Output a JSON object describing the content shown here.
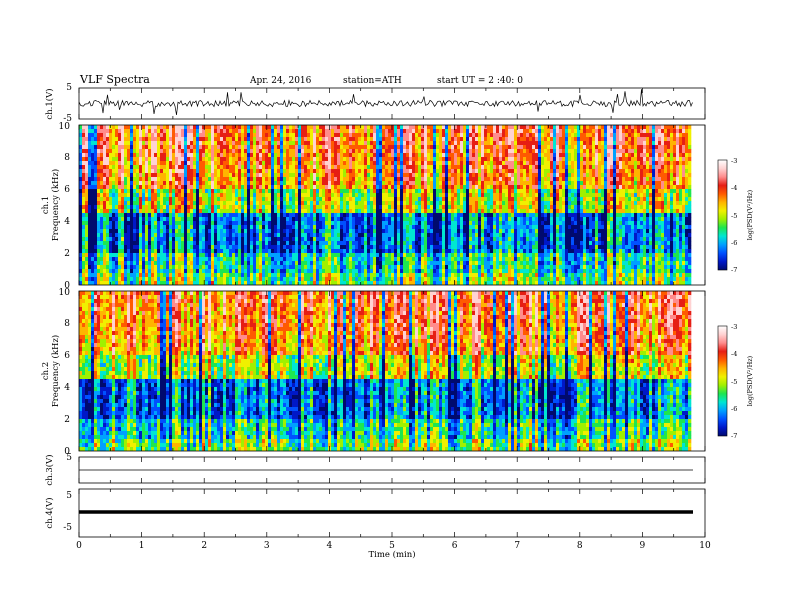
{
  "header": {
    "title": "VLF Spectra",
    "date": "Apr. 24, 2016",
    "station": "station=ATH",
    "start": "start UT = 2 :40: 0"
  },
  "chart_data": [
    {
      "type": "line",
      "panel": "ch1-waveform",
      "ylabel": "ch.1(V)",
      "ylim": [
        -5,
        5
      ],
      "yticks": [
        "5",
        "-5"
      ],
      "xlim": [
        0,
        10
      ],
      "x_range_min": [
        0,
        9.8
      ],
      "approx_center_value": 0,
      "approx_amplitude": 2
    },
    {
      "type": "heatmap",
      "panel": "ch1-spectrogram",
      "ylabel_line1": "ch.1",
      "ylabel_line2": "Frequency (kHz)",
      "ylim": [
        0,
        10
      ],
      "yticks": [
        "0",
        "2",
        "4",
        "6",
        "8",
        "10"
      ],
      "xlim": [
        0,
        10
      ],
      "colorbar": {
        "label": "log(PSD(V²/Hz)",
        "range": [
          -7,
          -3
        ],
        "ticks": [
          "-3",
          "-4",
          "-5",
          "-6",
          "-7"
        ]
      }
    },
    {
      "type": "heatmap",
      "panel": "ch2-spectrogram",
      "ylabel_line1": "ch.2",
      "ylabel_line2": "Frequency (kHz)",
      "ylim": [
        0,
        10
      ],
      "yticks": [
        "0",
        "2",
        "4",
        "6",
        "8",
        "10"
      ],
      "xlim": [
        0,
        10
      ],
      "colorbar": {
        "label": "log(PSD(V²/Hz)",
        "range": [
          -7,
          -3
        ],
        "ticks": [
          "-3",
          "-4",
          "-5",
          "-6",
          "-7"
        ]
      }
    },
    {
      "type": "line",
      "panel": "ch3-waveform",
      "ylabel": "ch.3(V)",
      "ylim": [
        -5,
        5
      ],
      "yticks": [
        "5"
      ],
      "xlim": [
        0,
        10
      ],
      "approx_value": 0
    },
    {
      "type": "line",
      "panel": "ch4-waveform",
      "ylabel": "ch.4(V)",
      "ylim": [
        -5,
        5
      ],
      "yticks": [
        "5",
        "-5"
      ],
      "xlim": [
        0,
        10
      ],
      "approx_value": 0
    }
  ],
  "xaxis": {
    "label": "Time (min)",
    "ticks": [
      "0",
      "1",
      "2",
      "3",
      "4",
      "5",
      "6",
      "7",
      "8",
      "9",
      "10"
    ]
  },
  "colormap": [
    "#000a6e",
    "#0018c8",
    "#0050ff",
    "#00a0ff",
    "#00e6d2",
    "#1ee650",
    "#a0f000",
    "#f0f000",
    "#ffb400",
    "#ff5a00",
    "#e61e14",
    "#ff8c8c",
    "#ffd2d2",
    "#ffffff"
  ]
}
